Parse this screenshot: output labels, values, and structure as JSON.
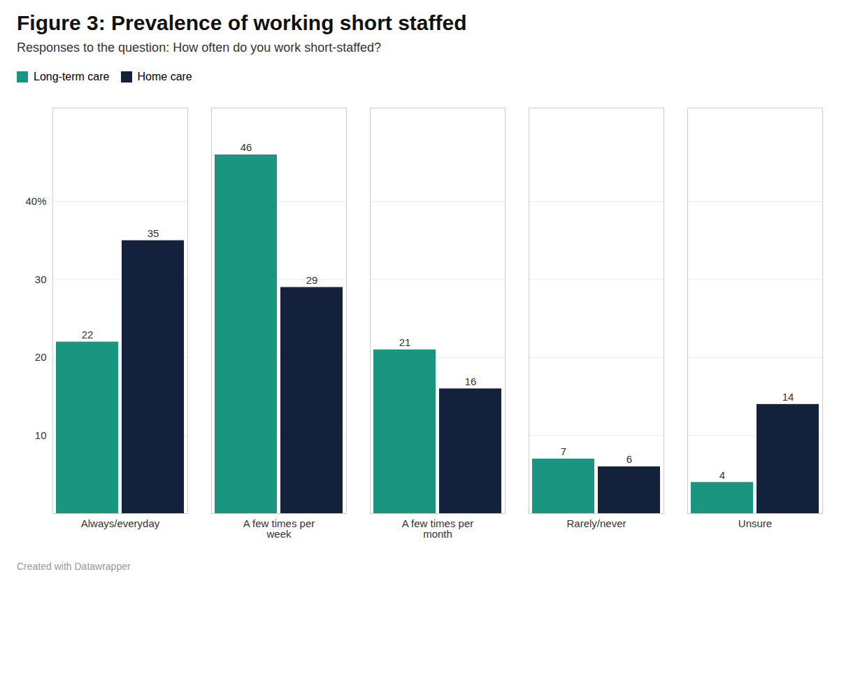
{
  "chart_data": {
    "type": "bar",
    "title": "Figure 3: Prevalence of working short staffed",
    "subtitle": "Responses to the question: How often do you work short-staffed?",
    "caption": "Created with Datawrapper",
    "categories": [
      "Always/everyday",
      "A few times per\nweek",
      "A few times per\nmonth",
      "Rarely/never",
      "Unsure"
    ],
    "series": [
      {
        "name": "Long-term care",
        "color": "#1a9680",
        "values": [
          22,
          46,
          21,
          7,
          4
        ]
      },
      {
        "name": "Home care",
        "color": "#14213d",
        "values": [
          35,
          29,
          16,
          6,
          14
        ]
      }
    ],
    "ylim": [
      0,
      52
    ],
    "yticks": [
      {
        "value": 0,
        "label": ""
      },
      10,
      20,
      30,
      {
        "value": 40,
        "label": "40%"
      }
    ],
    "grid": true,
    "legend": "top-left",
    "data_labels": true
  }
}
